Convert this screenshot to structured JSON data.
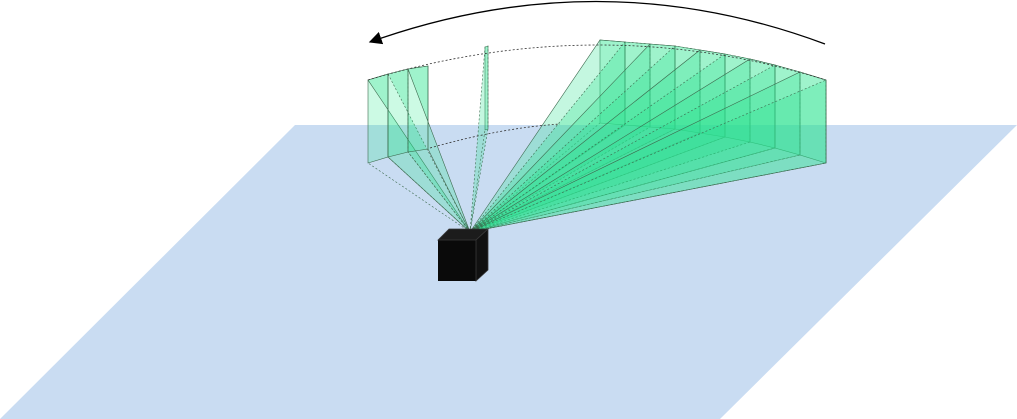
{
  "diagram": {
    "colors": {
      "background": "#ffffff",
      "ground_plane": "#c9dcf2",
      "beam_fill": "#17e883",
      "beam_stroke": "#3c6a4e",
      "beam_side_fill": "#2be38e",
      "sensor_body": "#0a0a0a",
      "sensor_edge": "#3a3a3a",
      "arrow": "#000000"
    },
    "elements": {
      "ground": "ground-plane",
      "sensor": "sensor-cube",
      "sweep_arc": "sweep-boundary-arc",
      "rotation_arrow": "rotation-direction-arrow"
    },
    "beam_count": 14,
    "rotation_direction": "counter-clockwise"
  }
}
